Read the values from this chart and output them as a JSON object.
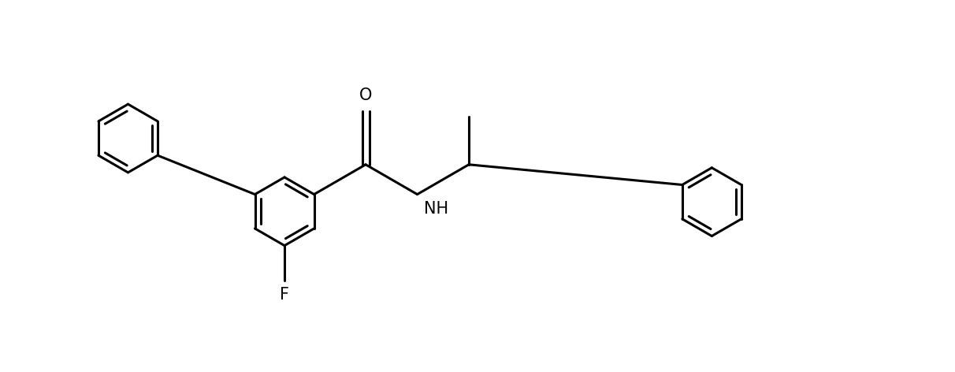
{
  "background_color": "#ffffff",
  "line_color": "#000000",
  "line_width": 2.2,
  "font_size": 15,
  "label_O": "O",
  "label_N": "NH",
  "label_F": "F",
  "figsize": [
    12.12,
    4.72
  ],
  "dpi": 100,
  "xlim": [
    0.5,
    11.8
  ],
  "ylim": [
    0.2,
    4.8
  ]
}
